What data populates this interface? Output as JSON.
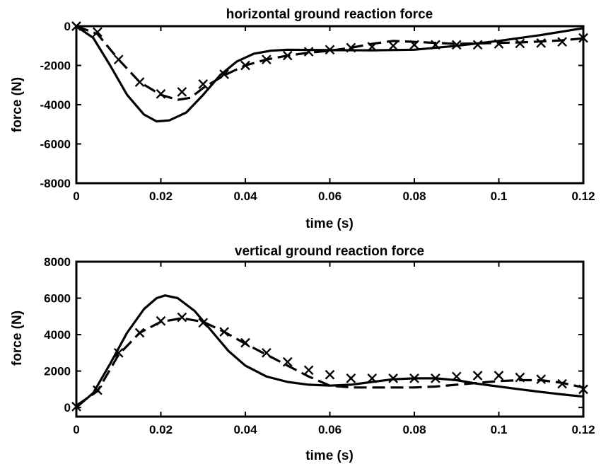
{
  "chart_data": [
    {
      "type": "line",
      "title": "horizontal ground reaction force",
      "xlabel": "time (s)",
      "ylabel": "force (N)",
      "xlim": [
        0,
        0.12
      ],
      "ylim": [
        -8000,
        0
      ],
      "xticks": [
        0,
        0.02,
        0.04,
        0.06,
        0.08,
        0.1,
        0.12
      ],
      "xtick_labels": [
        "0",
        "0.02",
        "0.04",
        "0.06",
        "0.08",
        "0.1",
        "0.12"
      ],
      "yticks": [
        -8000,
        -6000,
        -4000,
        -2000,
        0
      ],
      "ytick_labels": [
        "-8000",
        "-6000",
        "-4000",
        "-2000",
        "0"
      ],
      "grid": false,
      "series": [
        {
          "style": "solid",
          "x": [
            0,
            0.004,
            0.008,
            0.012,
            0.016,
            0.019,
            0.022,
            0.026,
            0.03,
            0.034,
            0.038,
            0.042,
            0.046,
            0.05,
            0.06,
            0.07,
            0.08,
            0.09,
            0.1,
            0.11,
            0.12
          ],
          "y": [
            0,
            -600,
            -2000,
            -3500,
            -4500,
            -4850,
            -4800,
            -4400,
            -3500,
            -2500,
            -1800,
            -1400,
            -1250,
            -1200,
            -1220,
            -1230,
            -1200,
            -1000,
            -750,
            -450,
            -100
          ]
        },
        {
          "style": "dashed",
          "x": [
            0,
            0.005,
            0.01,
            0.015,
            0.02,
            0.024,
            0.027,
            0.03,
            0.035,
            0.04,
            0.045,
            0.05,
            0.055,
            0.06,
            0.065,
            0.07,
            0.075,
            0.08,
            0.085,
            0.09,
            0.095,
            0.1,
            0.105,
            0.11,
            0.115,
            0.12
          ],
          "y": [
            0,
            -400,
            -1700,
            -2850,
            -3500,
            -3750,
            -3650,
            -3150,
            -2500,
            -2000,
            -1700,
            -1500,
            -1350,
            -1250,
            -1100,
            -900,
            -750,
            -800,
            -850,
            -900,
            -880,
            -850,
            -830,
            -780,
            -720,
            -620
          ]
        },
        {
          "style": "x-markers",
          "x": [
            0,
            0.005,
            0.01,
            0.015,
            0.02,
            0.025,
            0.03,
            0.035,
            0.04,
            0.045,
            0.05,
            0.055,
            0.06,
            0.065,
            0.07,
            0.075,
            0.08,
            0.085,
            0.09,
            0.095,
            0.1,
            0.105,
            0.11,
            0.115,
            0.12
          ],
          "y": [
            0,
            -300,
            -1700,
            -2850,
            -3450,
            -3350,
            -2950,
            -2450,
            -2000,
            -1700,
            -1500,
            -1300,
            -1200,
            -1100,
            -1050,
            -1000,
            -950,
            -950,
            -950,
            -950,
            -900,
            -880,
            -860,
            -800,
            -600
          ]
        }
      ]
    },
    {
      "type": "line",
      "title": "vertical ground reaction force",
      "xlabel": "time (s)",
      "ylabel": "force (N)",
      "xlim": [
        0,
        0.12
      ],
      "ylim": [
        -500,
        8000
      ],
      "xticks": [
        0,
        0.02,
        0.04,
        0.06,
        0.08,
        0.1,
        0.12
      ],
      "xtick_labels": [
        "0",
        "0.02",
        "0.04",
        "0.06",
        "0.08",
        "0.1",
        "0.12"
      ],
      "yticks": [
        0,
        2000,
        4000,
        6000,
        8000
      ],
      "ytick_labels": [
        "0",
        "2000",
        "4000",
        "6000",
        "8000"
      ],
      "grid": false,
      "series": [
        {
          "style": "solid",
          "x": [
            0,
            0.004,
            0.008,
            0.012,
            0.016,
            0.019,
            0.021,
            0.024,
            0.028,
            0.032,
            0.036,
            0.04,
            0.045,
            0.05,
            0.055,
            0.06,
            0.065,
            0.07,
            0.075,
            0.08,
            0.085,
            0.09,
            0.095,
            0.1,
            0.105,
            0.11,
            0.115,
            0.12
          ],
          "y": [
            0,
            800,
            2400,
            4100,
            5400,
            6000,
            6150,
            6000,
            5300,
            4200,
            3100,
            2300,
            1700,
            1400,
            1250,
            1200,
            1250,
            1400,
            1550,
            1600,
            1600,
            1500,
            1300,
            1150,
            1000,
            850,
            720,
            600
          ]
        },
        {
          "style": "dashed",
          "x": [
            0,
            0.005,
            0.01,
            0.015,
            0.02,
            0.025,
            0.03,
            0.035,
            0.04,
            0.045,
            0.05,
            0.055,
            0.06,
            0.065,
            0.07,
            0.075,
            0.08,
            0.085,
            0.09,
            0.095,
            0.1,
            0.105,
            0.11,
            0.115,
            0.12
          ],
          "y": [
            100,
            900,
            2900,
            4100,
            4700,
            4900,
            4700,
            4150,
            3500,
            2900,
            2300,
            1700,
            1200,
            1100,
            1100,
            1100,
            1100,
            1150,
            1250,
            1350,
            1450,
            1500,
            1500,
            1350,
            1100
          ]
        },
        {
          "style": "x-markers",
          "x": [
            0,
            0.005,
            0.01,
            0.015,
            0.02,
            0.025,
            0.03,
            0.035,
            0.04,
            0.045,
            0.05,
            0.055,
            0.06,
            0.065,
            0.07,
            0.075,
            0.08,
            0.085,
            0.09,
            0.095,
            0.1,
            0.105,
            0.11,
            0.115,
            0.12
          ],
          "y": [
            50,
            950,
            3000,
            4100,
            4750,
            4950,
            4650,
            4150,
            3550,
            3000,
            2500,
            2050,
            1800,
            1600,
            1600,
            1600,
            1600,
            1600,
            1700,
            1750,
            1750,
            1650,
            1550,
            1300,
            1000
          ]
        }
      ]
    }
  ]
}
